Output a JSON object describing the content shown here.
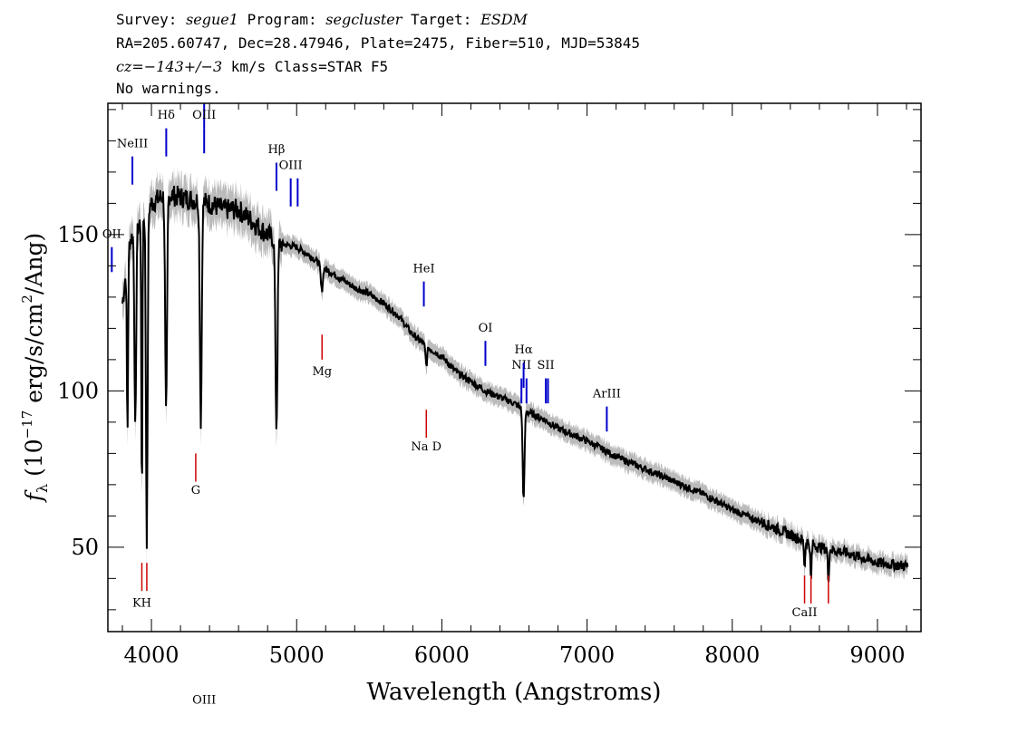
{
  "header": {
    "survey_label": "Survey:",
    "survey": "segue1",
    "program_label": "Program:",
    "program": "segcluster",
    "target_label": "Target:",
    "target": "ESDM",
    "line2": "RA=205.60747, Dec=28.47946, Plate=2475, Fiber=510, MJD=53845",
    "cz_label": "cz=",
    "cz_value": "−143+/−3",
    "cz_rest": " km/s Class=STAR F5",
    "line4": "No warnings."
  },
  "colors": {
    "emission": "#0000cc",
    "absorption": "#cc0000",
    "spectrum": "#000000",
    "error": "#bbbbbb"
  },
  "chart_data": {
    "type": "line",
    "xlabel": "Wavelength (Angstroms)",
    "ylabel_f": "f",
    "ylabel_sub": "λ",
    "ylabel_rest_a": " (10",
    "ylabel_exp": "−17",
    "ylabel_rest_b": " erg/s/cm",
    "ylabel_sq": "2",
    "ylabel_rest_c": "/Ang)",
    "xlim": [
      3700,
      9300
    ],
    "ylim": [
      23,
      192
    ],
    "x_ticks": [
      4000,
      5000,
      6000,
      7000,
      8000,
      9000
    ],
    "y_ticks": [
      50,
      100,
      150
    ],
    "continuum": [
      [
        3800,
        128
      ],
      [
        3850,
        148
      ],
      [
        3900,
        152
      ],
      [
        3950,
        156
      ],
      [
        4000,
        160
      ],
      [
        4100,
        163
      ],
      [
        4200,
        162
      ],
      [
        4300,
        161
      ],
      [
        4400,
        160
      ],
      [
        4500,
        158
      ],
      [
        4600,
        158
      ],
      [
        4700,
        154
      ],
      [
        4800,
        150
      ],
      [
        4900,
        147
      ],
      [
        5000,
        146
      ],
      [
        5100,
        143
      ],
      [
        5200,
        139
      ],
      [
        5300,
        136
      ],
      [
        5400,
        133
      ],
      [
        5500,
        131
      ],
      [
        5600,
        128
      ],
      [
        5700,
        124
      ],
      [
        5800,
        118
      ],
      [
        5900,
        114
      ],
      [
        6000,
        111
      ],
      [
        6100,
        106
      ],
      [
        6200,
        103
      ],
      [
        6300,
        100
      ],
      [
        6400,
        98
      ],
      [
        6500,
        96
      ],
      [
        6600,
        93
      ],
      [
        6700,
        91
      ],
      [
        6800,
        88
      ],
      [
        6900,
        86
      ],
      [
        7000,
        84
      ],
      [
        7200,
        79
      ],
      [
        7400,
        75
      ],
      [
        7600,
        71
      ],
      [
        7800,
        67
      ],
      [
        8000,
        62
      ],
      [
        8200,
        58
      ],
      [
        8400,
        54
      ],
      [
        8600,
        50
      ],
      [
        8800,
        48
      ],
      [
        9000,
        45
      ],
      [
        9200,
        44
      ]
    ],
    "absorption_dips": [
      {
        "x": 3835,
        "depth": 55,
        "w": 6
      },
      {
        "x": 3889,
        "depth": 65,
        "w": 8
      },
      {
        "x": 3934,
        "depth": 95,
        "w": 5
      },
      {
        "x": 3968,
        "depth": 105,
        "w": 8
      },
      {
        "x": 4101,
        "depth": 72,
        "w": 9
      },
      {
        "x": 4340,
        "depth": 70,
        "w": 9
      },
      {
        "x": 4861,
        "depth": 60,
        "w": 10
      },
      {
        "x": 5173,
        "depth": 8,
        "w": 10
      },
      {
        "x": 5893,
        "depth": 6,
        "w": 8
      },
      {
        "x": 6563,
        "depth": 29,
        "w": 9
      },
      {
        "x": 8498,
        "depth": 8,
        "w": 6
      },
      {
        "x": 8542,
        "depth": 12,
        "w": 6
      },
      {
        "x": 8662,
        "depth": 10,
        "w": 6
      }
    ],
    "emission_lines": [
      {
        "label": "OII",
        "x": 3727,
        "y_bottom": 138,
        "y_top": 146,
        "label_y": 149
      },
      {
        "label": "NeIII",
        "x": 3869,
        "y_bottom": 166,
        "y_top": 175,
        "label_y": 178
      },
      {
        "label": "Hδ",
        "x": 4102,
        "y_bottom": 175,
        "y_top": 184,
        "label_y": 187
      },
      {
        "label": "OIII",
        "x": 4363,
        "y_bottom": 184,
        "y_top": 192,
        "label_y": 0
      },
      {
        "label": "OIII",
        "x": 4363,
        "y_bottom": 176,
        "y_top": 184,
        "label_y": 187
      },
      {
        "label": "Hβ",
        "x": 4861,
        "y_bottom": 164,
        "y_top": 173,
        "label_y": 176
      },
      {
        "label": "OIII",
        "x": 4959,
        "y_bottom": 159,
        "y_top": 168,
        "label_y": 171
      },
      {
        "label": "",
        "x": 5007,
        "y_bottom": 159,
        "y_top": 168,
        "label_y": 0
      },
      {
        "label": "HeI",
        "x": 5876,
        "y_bottom": 127,
        "y_top": 135,
        "label_y": 138
      },
      {
        "label": "OI",
        "x": 6300,
        "y_bottom": 108,
        "y_top": 116,
        "label_y": 119
      },
      {
        "label": "NII",
        "x": 6548,
        "y_bottom": 96,
        "y_top": 104,
        "label_y": 107
      },
      {
        "label": "Hα",
        "x": 6563,
        "y_bottom": 101,
        "y_top": 109,
        "label_y": 112
      },
      {
        "label": "",
        "x": 6583,
        "y_bottom": 96,
        "y_top": 104,
        "label_y": 0
      },
      {
        "label": "SII",
        "x": 6716,
        "y_bottom": 96,
        "y_top": 104,
        "label_y": 107
      },
      {
        "label": "",
        "x": 6731,
        "y_bottom": 96,
        "y_top": 104,
        "label_y": 0
      },
      {
        "label": "ArIII",
        "x": 7136,
        "y_bottom": 87,
        "y_top": 95,
        "label_y": 98
      }
    ],
    "absorption_lines": [
      {
        "label": "KH",
        "x": 3934,
        "y_bottom": 36,
        "y_top": 45,
        "label_y": 31
      },
      {
        "label": "",
        "x": 3968,
        "y_bottom": 36,
        "y_top": 45,
        "label_y": 0
      },
      {
        "label": "G",
        "x": 4305,
        "y_bottom": 71,
        "y_top": 80,
        "label_y": 67
      },
      {
        "label": "Mg",
        "x": 5175,
        "y_bottom": 110,
        "y_top": 118,
        "label_y": 105
      },
      {
        "label": "Na D",
        "x": 5893,
        "y_bottom": 85,
        "y_top": 94,
        "label_y": 81
      },
      {
        "label": "CaII",
        "x": 8498,
        "y_bottom": 32,
        "y_top": 41,
        "label_y": 28
      },
      {
        "label": "",
        "x": 8542,
        "y_bottom": 32,
        "y_top": 41,
        "label_y": 0
      },
      {
        "label": "",
        "x": 8662,
        "y_bottom": 32,
        "y_top": 41,
        "label_y": 0
      }
    ]
  }
}
